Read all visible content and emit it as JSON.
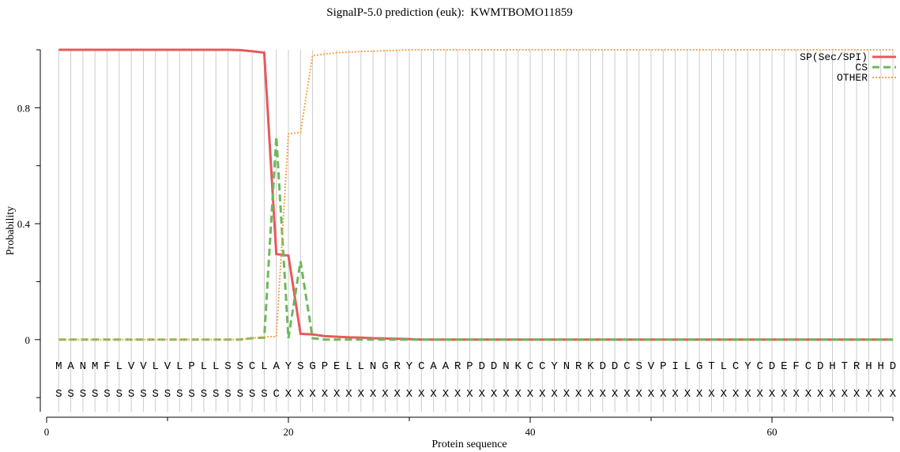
{
  "chart_data": {
    "type": "line",
    "title": "SignalP-5.0 prediction (euk):  KWMTBOMO11859",
    "xlabel": "Protein sequence",
    "ylabel": "Probability",
    "xlim": [
      0,
      70
    ],
    "ylim": [
      -0.25,
      1
    ],
    "xticks": [
      0,
      20,
      40,
      60
    ],
    "x_minor_ticks": [
      10,
      30,
      50,
      70
    ],
    "yticks": [
      0,
      0.4,
      0.8
    ],
    "y_minor_ticks": [
      -0.2,
      0.2,
      0.6,
      1.0
    ],
    "grid": true,
    "legend": "upper right",
    "x": [
      1,
      2,
      3,
      4,
      5,
      6,
      7,
      8,
      9,
      10,
      11,
      12,
      13,
      14,
      15,
      16,
      17,
      18,
      19,
      20,
      21,
      22,
      23,
      24,
      25,
      26,
      27,
      28,
      29,
      30,
      31,
      32,
      33,
      34,
      35,
      36,
      37,
      38,
      39,
      40,
      41,
      42,
      43,
      44,
      45,
      46,
      47,
      48,
      49,
      50,
      51,
      52,
      53,
      54,
      55,
      56,
      57,
      58,
      59,
      60,
      61,
      62,
      63,
      64,
      65,
      66,
      67,
      68,
      69,
      70
    ],
    "sequence": [
      "M",
      "A",
      "N",
      "M",
      "F",
      "L",
      "V",
      "V",
      "L",
      "V",
      "L",
      "P",
      "L",
      "L",
      "S",
      "S",
      "C",
      "L",
      "A",
      "Y",
      "S",
      "G",
      "P",
      "E",
      "L",
      "L",
      "N",
      "G",
      "R",
      "Y",
      "C",
      "A",
      "A",
      "R",
      "P",
      "D",
      "D",
      "N",
      "K",
      "C",
      "C",
      "Y",
      "N",
      "R",
      "K",
      "D",
      "D",
      "C",
      "S",
      "V",
      "P",
      "I",
      "L",
      "G",
      "T",
      "L",
      "C",
      "Y",
      "C",
      "D",
      "E",
      "F",
      "C",
      "D",
      "H",
      "T",
      "R",
      "H",
      "H",
      "D"
    ],
    "annotation": [
      "S",
      "S",
      "S",
      "S",
      "S",
      "S",
      "S",
      "S",
      "S",
      "S",
      "S",
      "S",
      "S",
      "S",
      "S",
      "S",
      "S",
      "S",
      "C",
      "X",
      "X",
      "X",
      "X",
      "X",
      "X",
      "X",
      "X",
      "X",
      "X",
      "X",
      "X",
      "X",
      "X",
      "X",
      "X",
      "X",
      "X",
      "X",
      "X",
      "X",
      "X",
      "X",
      "X",
      "X",
      "X",
      "X",
      "X",
      "X",
      "X",
      "X",
      "X",
      "X",
      "X",
      "X",
      "X",
      "X",
      "X",
      "X",
      "X",
      "X",
      "X",
      "X",
      "X",
      "X",
      "X",
      "X",
      "X",
      "X",
      "X",
      "X"
    ],
    "series": [
      {
        "name": "SP(Sec/SPI)",
        "color": "#e8585c",
        "linestyle": "solid",
        "values": [
          1,
          1,
          1,
          1,
          1,
          1,
          1,
          1,
          1,
          1,
          1,
          1,
          1,
          1,
          1,
          0.999,
          0.995,
          0.99,
          0.295,
          0.29,
          0.02,
          0.018,
          0.012,
          0.01,
          0.008,
          0.007,
          0.005,
          0.004,
          0.003,
          0.002,
          0,
          0,
          0,
          0,
          0,
          0,
          0,
          0,
          0,
          0,
          0,
          0,
          0,
          0,
          0,
          0,
          0,
          0,
          0,
          0,
          0,
          0,
          0,
          0,
          0,
          0,
          0,
          0,
          0,
          0,
          0,
          0,
          0,
          0,
          0,
          0,
          0,
          0,
          0,
          0
        ]
      },
      {
        "name": "CS",
        "color": "#6cb95a",
        "linestyle": "dashed",
        "values": [
          0,
          0,
          0,
          0,
          0,
          0,
          0,
          0,
          0,
          0,
          0,
          0,
          0,
          0,
          0,
          0,
          0.005,
          0.007,
          0.7,
          0.005,
          0.27,
          0.005,
          0,
          0,
          0,
          0,
          0,
          0,
          0,
          0,
          0,
          0,
          0,
          0,
          0,
          0,
          0,
          0,
          0,
          0,
          0,
          0,
          0,
          0,
          0,
          0,
          0,
          0,
          0,
          0,
          0,
          0,
          0,
          0,
          0,
          0,
          0,
          0,
          0,
          0,
          0,
          0,
          0,
          0,
          0,
          0,
          0,
          0,
          0,
          0
        ]
      },
      {
        "name": "OTHER",
        "color": "#f5a64a",
        "linestyle": "dotted",
        "values": [
          0,
          0,
          0,
          0,
          0,
          0,
          0,
          0,
          0,
          0,
          0,
          0,
          0,
          0,
          0,
          0,
          0.005,
          0.01,
          0.01,
          0.71,
          0.715,
          0.98,
          0.985,
          0.99,
          0.992,
          0.994,
          0.995,
          0.997,
          0.998,
          1,
          1,
          1,
          1,
          1,
          1,
          1,
          1,
          1,
          1,
          1,
          1,
          1,
          1,
          1,
          1,
          1,
          1,
          1,
          1,
          1,
          1,
          1,
          1,
          1,
          1,
          1,
          1,
          1,
          1,
          1,
          1,
          1,
          1,
          1,
          1,
          1,
          1,
          1,
          1,
          1
        ]
      }
    ]
  }
}
